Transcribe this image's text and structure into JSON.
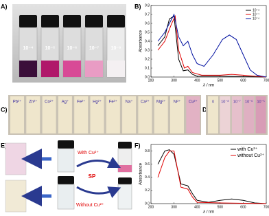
{
  "labels": [
    "A)",
    "B)",
    "C)",
    "D)",
    "E)",
    "F)"
  ],
  "panel_a": {
    "vials": [
      "10⁻⁴",
      "10⁻⁵",
      "10⁻⁶",
      "10⁻⁷",
      "10⁻⁸"
    ]
  },
  "panel_c": {
    "strips": [
      "Pb²⁺",
      "Zn²⁺",
      "Co²⁺",
      "Ag⁺",
      "Fe²⁺",
      "Hg²⁺",
      "Fe³⁺",
      "Na⁺",
      "Ca²⁺",
      "Mg²⁺",
      "Ni²⁺",
      "Cu²⁺"
    ]
  },
  "panel_d": {
    "strips": [
      "0",
      "10⁻⁸",
      "10⁻⁷",
      "10⁻⁶",
      "10⁻⁵"
    ]
  },
  "panel_e": {
    "with": "With Cu²⁺",
    "probe": "SP",
    "without": "Without Cu²⁺"
  },
  "chart_data": [
    {
      "type": "line",
      "x_label": "λ / nm",
      "y_label": "Absorbance",
      "xlim": [
        200,
        700
      ],
      "xticks": [
        200,
        300,
        400,
        500,
        600,
        700
      ],
      "ylim": [
        0,
        0.8
      ],
      "yticks": [
        {
          "value": 0,
          "label": "0.0"
        },
        0.1,
        0.2,
        0.3,
        0.4,
        0.5,
        0.6,
        0.7,
        0.8
      ],
      "legend": "top-right",
      "series": [
        {
          "name": "10⁻⁸",
          "color": "#000000",
          "x": [
            230,
            260,
            280,
            300,
            320,
            340,
            360,
            380,
            400,
            500,
            600,
            700
          ],
          "values": [
            0.35,
            0.45,
            0.65,
            0.68,
            0.2,
            0.07,
            0.08,
            0.03,
            0.01,
            0.01,
            0.005,
            0
          ]
        },
        {
          "name": "10⁻⁷",
          "color": "#e00000",
          "x": [
            230,
            260,
            290,
            305,
            320,
            345,
            360,
            380,
            420,
            500,
            550,
            600,
            700
          ],
          "values": [
            0.3,
            0.4,
            0.6,
            0.68,
            0.3,
            0.1,
            0.12,
            0.05,
            0.02,
            0.02,
            0.03,
            0.02,
            0
          ]
        },
        {
          "name": "10⁻⁶",
          "color": "#0010a0",
          "x": [
            230,
            260,
            290,
            300,
            320,
            340,
            360,
            380,
            400,
            430,
            470,
            510,
            540,
            570,
            600,
            630,
            660,
            700
          ],
          "values": [
            0.4,
            0.5,
            0.65,
            0.7,
            0.45,
            0.35,
            0.4,
            0.25,
            0.15,
            0.12,
            0.25,
            0.42,
            0.47,
            0.42,
            0.25,
            0.08,
            0.02,
            0
          ]
        }
      ]
    },
    {
      "type": "line",
      "x_label": "λ / nm",
      "y_label": "Absorbance",
      "xlim": [
        200,
        700
      ],
      "xticks": [
        200,
        300,
        400,
        500,
        600,
        700
      ],
      "ylim": [
        0,
        0.9
      ],
      "yticks": [
        {
          "value": 0,
          "label": "0.0"
        },
        0.2,
        0.4,
        0.6,
        0.8
      ],
      "legend": "top-right",
      "series": [
        {
          "name": "with Cu²⁺",
          "color": "#000000",
          "x": [
            230,
            260,
            280,
            300,
            330,
            360,
            380,
            400,
            450,
            500,
            550,
            600,
            650,
            700
          ],
          "values": [
            0.6,
            0.8,
            0.82,
            0.75,
            0.3,
            0.27,
            0.15,
            0.05,
            0.02,
            0.05,
            0.07,
            0.05,
            0.01,
            0
          ]
        },
        {
          "name": "without Cu²⁺",
          "color": "#e00000",
          "x": [
            230,
            260,
            280,
            300,
            330,
            360,
            380,
            400,
            500,
            600,
            700
          ],
          "values": [
            0.4,
            0.7,
            0.8,
            0.8,
            0.25,
            0.22,
            0.1,
            0.02,
            0.01,
            0.005,
            0
          ]
        }
      ]
    }
  ]
}
